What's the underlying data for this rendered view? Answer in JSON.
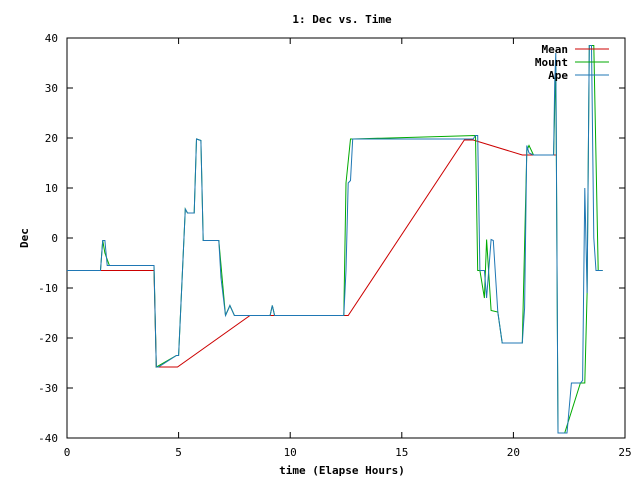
{
  "chart_data": {
    "type": "line",
    "title": "1: Dec vs. Time",
    "xlabel": "time (Elapse Hours)",
    "ylabel": "Dec",
    "xlim": [
      0,
      25
    ],
    "ylim": [
      -40,
      40
    ],
    "xticks": [
      0,
      5,
      10,
      15,
      20,
      25
    ],
    "yticks": [
      -40,
      -30,
      -20,
      -10,
      0,
      10,
      20,
      30,
      40
    ],
    "grid": false,
    "legend_position": "top-right",
    "series": [
      {
        "name": "Mean",
        "color": "#cc0000",
        "x": [
          0,
          3.9,
          4.0,
          4.1,
          4.9,
          4.95,
          8.2,
          9.5,
          12.5,
          12.6,
          17.8,
          18.2,
          20.4,
          20.5,
          21.2,
          21.9
        ],
        "y": [
          -6.5,
          -6.5,
          -25.8,
          -25.8,
          -25.8,
          -25.8,
          -15.5,
          -15.5,
          -15.5,
          -15.5,
          19.6,
          19.6,
          16.6,
          16.6,
          16.6,
          16.6
        ]
      },
      {
        "name": "Mount",
        "color": "#00aa00",
        "x": [
          0,
          1.5,
          1.6,
          1.7,
          1.9,
          3.9,
          4.0,
          4.9,
          5.0,
          5.3,
          5.4,
          5.7,
          5.8,
          6.0,
          6.1,
          6.8,
          7.1,
          7.3,
          7.5,
          9.1,
          9.2,
          9.3,
          12.4,
          12.5,
          12.7,
          12.8,
          18.3,
          18.4,
          18.5,
          18.7,
          18.8,
          19.0,
          19.3,
          19.5,
          20.4,
          20.6,
          20.7,
          20.9,
          21.8,
          21.9,
          22.0,
          22.3,
          23.0,
          23.2,
          23.3,
          23.4,
          23.5,
          23.6,
          23.8,
          24.0
        ],
        "y": [
          -6.5,
          -6.5,
          -0.5,
          -3.0,
          -5.5,
          -5.5,
          -25.8,
          -23.5,
          -23.5,
          5.8,
          5.0,
          5.0,
          19.8,
          19.5,
          -0.5,
          -0.5,
          -15.5,
          -13.5,
          -15.5,
          -15.5,
          -13.5,
          -15.5,
          -15.5,
          11.0,
          19.8,
          19.8,
          20.5,
          -6.5,
          -6.5,
          -12.0,
          -0.3,
          -14.5,
          -14.8,
          -21.0,
          -21.0,
          17.5,
          18.5,
          16.6,
          16.6,
          35.0,
          -39.0,
          -39.0,
          -29.0,
          -29.0,
          -11.0,
          38.5,
          38.5,
          38.5,
          -6.5,
          -6.5
        ]
      },
      {
        "name": "Ape",
        "color": "#1f77b4",
        "x": [
          0,
          1.5,
          1.6,
          1.7,
          1.8,
          3.9,
          4.0,
          4.1,
          4.9,
          5.0,
          5.3,
          5.4,
          5.6,
          5.7,
          5.8,
          6.0,
          6.1,
          6.8,
          6.9,
          7.1,
          7.3,
          7.5,
          9.1,
          9.2,
          9.3,
          12.4,
          12.5,
          12.6,
          12.7,
          12.8,
          18.2,
          18.3,
          18.4,
          18.5,
          18.7,
          18.8,
          19.0,
          19.1,
          19.3,
          19.5,
          20.4,
          20.5,
          20.6,
          20.7,
          20.9,
          21.8,
          21.85,
          21.9,
          22.0,
          22.3,
          22.4,
          22.6,
          23.0,
          23.1,
          23.2,
          23.3,
          23.4,
          23.5,
          23.6,
          23.7,
          23.8,
          24.0
        ],
        "y": [
          -6.5,
          -6.5,
          -0.5,
          -0.5,
          -5.5,
          -5.5,
          -25.8,
          -25.8,
          -23.5,
          -23.5,
          5.8,
          5.0,
          5.0,
          5.0,
          19.8,
          19.5,
          -0.5,
          -0.5,
          -8.0,
          -15.5,
          -13.5,
          -15.5,
          -15.5,
          -13.5,
          -15.5,
          -15.5,
          -6.5,
          11.0,
          11.5,
          19.8,
          19.8,
          20.5,
          20.5,
          -6.5,
          -6.5,
          -12.0,
          -0.3,
          -0.5,
          -14.8,
          -21.0,
          -21.0,
          -14.0,
          18.5,
          17.0,
          16.6,
          16.6,
          31.0,
          37.0,
          -39.0,
          -39.0,
          -39.0,
          -29.0,
          -29.0,
          -28.5,
          10.0,
          -11.0,
          38.5,
          38.5,
          0.0,
          -6.5,
          -6.5,
          -6.5
        ]
      }
    ]
  }
}
